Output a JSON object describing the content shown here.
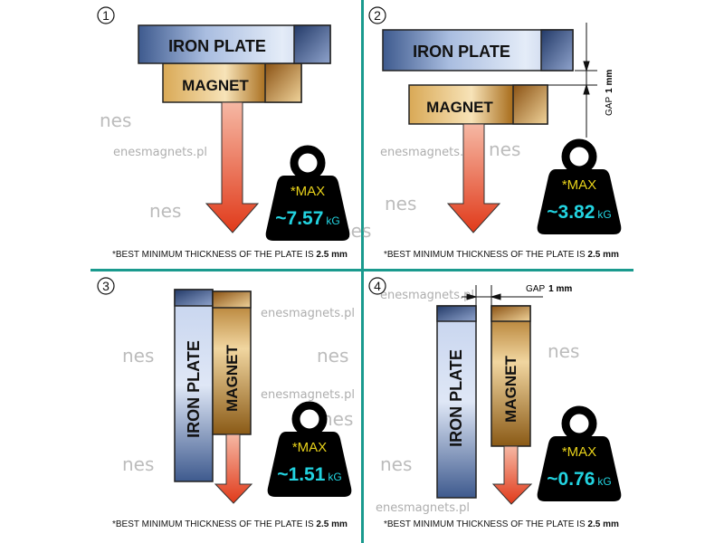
{
  "colors": {
    "divider": "#1a9a8e",
    "iron": "#8fa3cc",
    "magnet": "#c8963c",
    "arrow": "#e03a1a",
    "weight": "#000000",
    "max_text": "#e8d21a",
    "value_text": "#22d3e0"
  },
  "watermark": "enesmagnets.pl",
  "logo": "nes",
  "panels": [
    {
      "number": "1",
      "iron_label": "IRON PLATE",
      "magnet_label": "MAGNET",
      "max_label": "*MAX",
      "value": "~7.57",
      "unit": "kG",
      "footnote": "*BEST MINIMUM THICKNESS OF THE PLATE IS ",
      "footnote_bold": "2.5 mm"
    },
    {
      "number": "2",
      "iron_label": "IRON PLATE",
      "magnet_label": "MAGNET",
      "max_label": "*MAX",
      "value": "~3.82",
      "unit": "kG",
      "gap_label": "GAP",
      "gap_value": "1 mm",
      "footnote": "*BEST MINIMUM THICKNESS OF THE PLATE IS ",
      "footnote_bold": "2.5 mm"
    },
    {
      "number": "3",
      "iron_label": "IRON  PLATE",
      "magnet_label": "MAGNET",
      "max_label": "*MAX",
      "value": "~1.51",
      "unit": "kG",
      "footnote": "*BEST MINIMUM THICKNESS OF THE PLATE IS ",
      "footnote_bold": "2.5 mm"
    },
    {
      "number": "4",
      "iron_label": "IRON PLATE",
      "magnet_label": "MAGNET",
      "max_label": "*MAX",
      "value": "~0.76",
      "unit": "kG",
      "gap_label": "GAP",
      "gap_value": "1 mm",
      "footnote": "*BEST MINIMUM THICKNESS OF THE PLATE IS ",
      "footnote_bold": "2.5 mm"
    }
  ]
}
